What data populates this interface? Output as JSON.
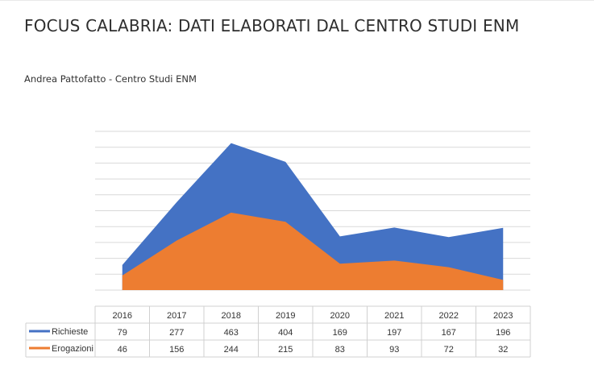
{
  "header": {
    "title": "FOCUS CALABRIA: DATI ELABORATI DAL CENTRO STUDI ENM",
    "byline": "Andrea Pattofatto - Centro Studi ENM"
  },
  "chart_data": {
    "type": "area",
    "categories": [
      "2016",
      "2017",
      "2018",
      "2019",
      "2020",
      "2021",
      "2022",
      "2023"
    ],
    "series": [
      {
        "name": "Richieste",
        "values": [
          79,
          277,
          463,
          404,
          169,
          197,
          167,
          196
        ],
        "color": "#4472c4"
      },
      {
        "name": "Erogazioni",
        "values": [
          46,
          156,
          244,
          215,
          83,
          93,
          72,
          32
        ],
        "color": "#ed7d31"
      }
    ],
    "ylim": [
      0,
      500
    ],
    "grid": true,
    "legend_placement": "data-table-left"
  }
}
